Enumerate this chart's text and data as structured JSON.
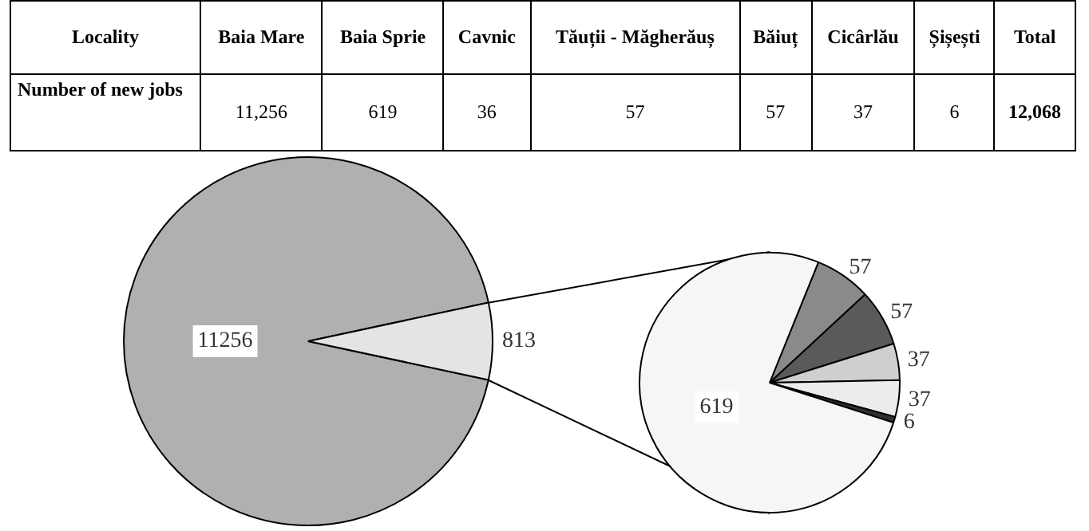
{
  "chart_data": [
    {
      "type": "other",
      "xlabel": "Locality",
      "ylabel": "Number of new jobs",
      "categories": [
        "Baia Mare",
        "Baia Sprie",
        "Cavnic",
        "Tăuții - Măgherăuș",
        "Băiuț",
        "Cicârlău",
        "Șișești",
        "Total"
      ],
      "values": [
        11256,
        619,
        36,
        57,
        57,
        37,
        6,
        12068
      ],
      "value_labels": [
        "11,256",
        "619",
        "36",
        "57",
        "57",
        "37",
        "6",
        "12,068"
      ]
    },
    {
      "type": "pie",
      "categories": [
        null,
        null
      ],
      "values": [
        11256,
        813
      ],
      "colors": [
        "#b0b0b0",
        "#e4e4e4"
      ],
      "data_labels": true
    },
    {
      "type": "pie",
      "categories": [
        null,
        null,
        null,
        null,
        null,
        null
      ],
      "values": [
        57,
        57,
        37,
        37,
        6,
        619
      ],
      "colors": [
        "#8a8a8a",
        "#5a5a5a",
        "#cfcfcf",
        "#ececec",
        "#303030",
        "#f6f6f6"
      ],
      "data_labels": true
    }
  ]
}
